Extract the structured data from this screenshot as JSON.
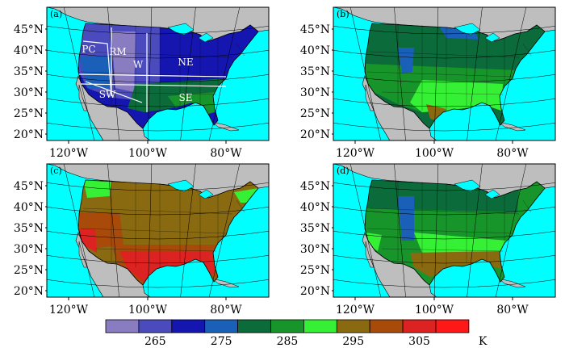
{
  "panels": [
    {
      "tag": "(a)",
      "lat_labels": [
        "45°N",
        "40°N",
        "35°N",
        "30°N",
        "25°N",
        "20°N"
      ],
      "lon_labels": [
        "120°W",
        "100°W",
        "80°W"
      ],
      "regions": [
        {
          "code": "PC"
        },
        {
          "code": "RM"
        },
        {
          "code": "W"
        },
        {
          "code": "NE"
        },
        {
          "code": "SW"
        },
        {
          "code": "SE"
        }
      ]
    },
    {
      "tag": "(b)",
      "lat_labels": [
        "45°N",
        "40°N",
        "35°N",
        "30°N",
        "25°N",
        "20°N"
      ],
      "lon_labels": [
        "120°W",
        "100°W",
        "80°W"
      ]
    },
    {
      "tag": "(c)",
      "lat_labels": [
        "45°N",
        "40°N",
        "35°N",
        "30°N",
        "25°N",
        "20°N"
      ],
      "lon_labels": [
        "120°W",
        "100°W",
        "80°W"
      ]
    },
    {
      "tag": "(d)",
      "lat_labels": [
        "45°N",
        "40°N",
        "35°N",
        "30°N",
        "25°N",
        "20°N"
      ],
      "lon_labels": [
        "120°W",
        "100°W",
        "80°W"
      ]
    }
  ],
  "colorbar": {
    "colors": [
      "#8a7cc0",
      "#4b4bbd",
      "#1515b0",
      "#1a5fb8",
      "#0b6b3a",
      "#18952a",
      "#36f036",
      "#8a6a10",
      "#a84a0a",
      "#dd2222",
      "#ff1818"
    ],
    "tick_labels": [
      "265",
      "275",
      "285",
      "295",
      "305"
    ],
    "unit": "K"
  },
  "colors": {
    "ocean": "#00ffff",
    "land_outside": "#bebebe"
  }
}
